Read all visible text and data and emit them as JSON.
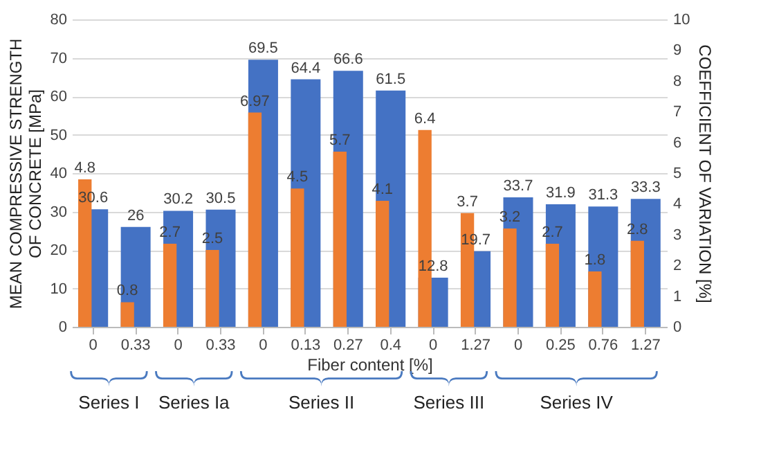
{
  "chart_data": {
    "type": "bar",
    "categories": [
      "0",
      "0.33",
      "0",
      "0.33",
      "0",
      "0.13",
      "0.27",
      "0.4",
      "0",
      "1.27",
      "0",
      "0.25",
      "0.76",
      "1.27"
    ],
    "series": [
      {
        "color": "#4472c4",
        "values": [
          30.6,
          26,
          30.2,
          30.5,
          69.5,
          64.4,
          66.6,
          61.5,
          12.8,
          19.7,
          33.7,
          31.9,
          31.3,
          33.3
        ]
      },
      {
        "color": "#ed7d31",
        "axis": "y2",
        "values": [
          4.8,
          0.8,
          2.7,
          2.5,
          6.97,
          4.5,
          5.7,
          4.1,
          6.4,
          3.7,
          3.2,
          2.7,
          1.8,
          2.8
        ]
      }
    ],
    "xlabel": "Fiber content [%]",
    "ylabel": "MEAN COMPRESSIVE STRENGTH OF CONCRETE [MPa]",
    "y2label": "COEFFICIENT OF VARIATION [%]",
    "ylim": [
      0,
      80
    ],
    "yticks": [
      0,
      10,
      20,
      30,
      40,
      50,
      60,
      70,
      80
    ],
    "y2lim": [
      0,
      10
    ],
    "y2ticks": [
      0,
      1,
      2,
      3,
      4,
      5,
      6,
      7,
      8,
      9,
      10
    ],
    "grid": "y",
    "data_labels": true,
    "annotations": [
      "Series I",
      "Series Ia",
      "Series II",
      "Series III",
      "Series IV"
    ]
  }
}
